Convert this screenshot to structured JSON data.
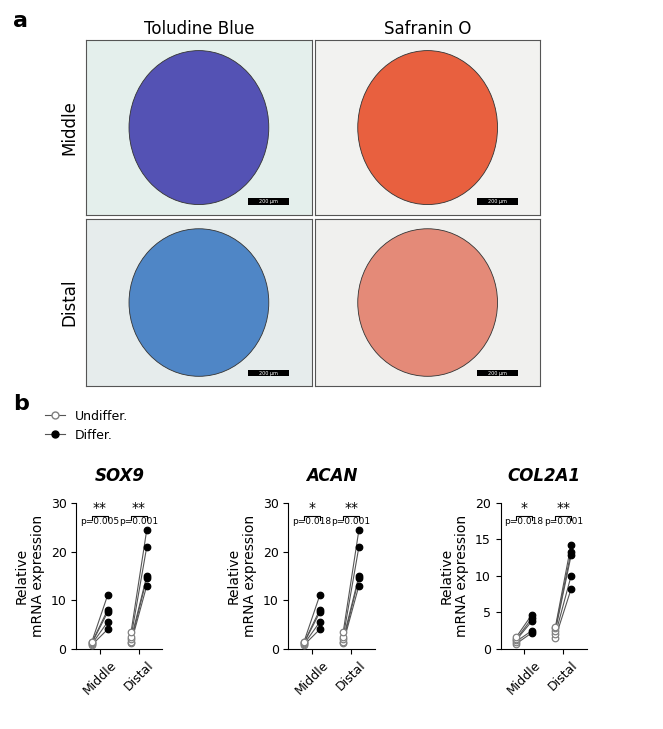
{
  "panel_a": {
    "label": "a",
    "columns": [
      "Toludine Blue",
      "Safranin O"
    ],
    "rows": [
      "Middle",
      "Distal"
    ],
    "scale_bar": "200 μm"
  },
  "panel_b": {
    "label": "b"
  },
  "chart_data": [
    {
      "type": "scatter",
      "title": "SOX9",
      "ylabel": "Relative\nmRNA expression",
      "categories": [
        "Middle",
        "Distal"
      ],
      "ylim": [
        0,
        30
      ],
      "yticks": [
        0,
        10,
        20,
        30
      ],
      "legend": "upper left",
      "series": [
        {
          "name": "Undiffer.",
          "color": "#808080",
          "marker": "circle-open",
          "values": [
            [
              0.8,
              1.0,
              1.2,
              1.3,
              1.5
            ],
            [
              1.2,
              1.5,
              2.0,
              2.5,
              3.5
            ]
          ]
        },
        {
          "name": "Differ.",
          "color": "#000000",
          "marker": "circle",
          "values": [
            [
              4.0,
              5.5,
              7.5,
              8.0,
              11.0
            ],
            [
              13.0,
              14.5,
              15.0,
              21.0,
              24.5
            ]
          ]
        }
      ],
      "annotations": [
        {
          "stars": "**",
          "text": "p=0.005"
        },
        {
          "stars": "**",
          "text": "p=0.001"
        }
      ]
    },
    {
      "type": "scatter",
      "title": "ACAN",
      "ylabel": "Relative\nmRNA expression",
      "categories": [
        "Middle",
        "Distal"
      ],
      "ylim": [
        0,
        30
      ],
      "yticks": [
        0,
        10,
        20,
        30
      ],
      "series": [
        {
          "name": "Undiffer.",
          "color": "#808080",
          "marker": "circle-open",
          "values": [
            [
              0.8,
              1.0,
              1.2,
              1.3,
              1.5
            ],
            [
              1.2,
              1.5,
              2.0,
              2.5,
              3.5
            ]
          ]
        },
        {
          "name": "Differ.",
          "color": "#000000",
          "marker": "circle",
          "values": [
            [
              4.0,
              5.5,
              7.5,
              8.0,
              11.0
            ],
            [
              13.0,
              14.5,
              15.0,
              21.0,
              24.5
            ]
          ]
        }
      ],
      "annotations": [
        {
          "stars": "*",
          "text": "p=0.018"
        },
        {
          "stars": "**",
          "text": "p=0.001"
        }
      ]
    },
    {
      "type": "scatter",
      "title": "COL2A1",
      "ylabel": "Relative\nmRNA expression",
      "categories": [
        "Middle",
        "Distal"
      ],
      "ylim": [
        0,
        20
      ],
      "yticks": [
        0,
        5,
        10,
        15,
        20
      ],
      "series": [
        {
          "name": "Undiffer.",
          "color": "#808080",
          "marker": "circle-open",
          "values": [
            [
              0.7,
              1.0,
              1.2,
              1.3,
              1.6
            ],
            [
              1.5,
              2.0,
              2.5,
              2.8,
              3.0
            ]
          ]
        },
        {
          "name": "Differ.",
          "color": "#000000",
          "marker": "circle",
          "values": [
            [
              2.2,
              2.5,
              3.8,
              4.2,
              4.7
            ],
            [
              8.2,
              10.0,
              12.8,
              13.3,
              14.3
            ]
          ]
        }
      ],
      "annotations": [
        {
          "stars": "*",
          "text": "p=0.018"
        },
        {
          "stars": "**",
          "text": "p=0.001"
        }
      ]
    }
  ]
}
